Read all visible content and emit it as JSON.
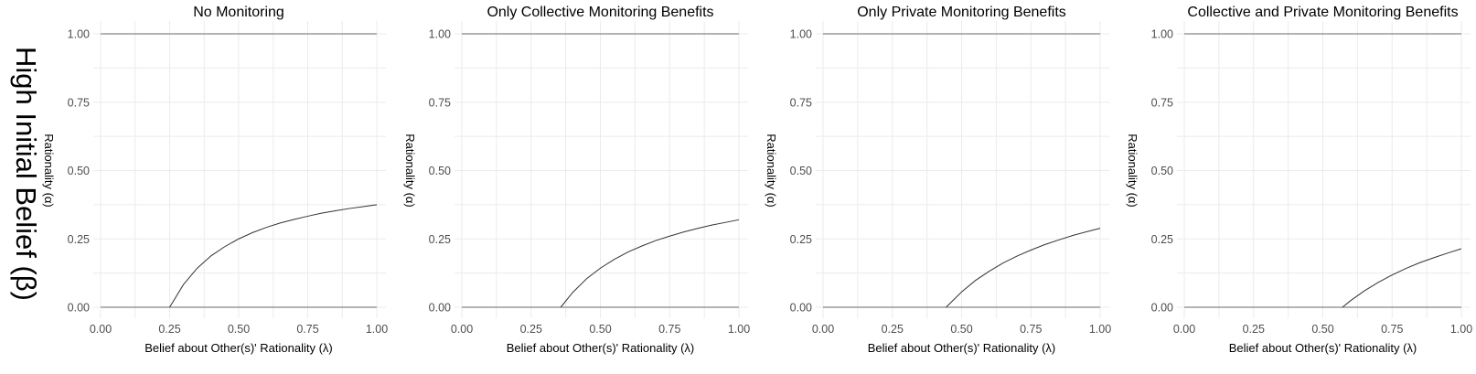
{
  "row_label": "High Initial Belief (β)",
  "chart_data": [
    {
      "type": "line",
      "title": "No Monitoring",
      "xlabel": "Belief about Other(s)' Rationality (λ)",
      "ylabel": "Rationality (α)",
      "xlim": [
        0,
        1
      ],
      "ylim": [
        0,
        1
      ],
      "xticks": [
        "0.00",
        "0.25",
        "0.50",
        "0.75",
        "1.00"
      ],
      "yticks": [
        "0.00",
        "0.25",
        "0.50",
        "0.75",
        "1.00"
      ],
      "grid": true,
      "series": [
        {
          "x": [
            0,
            1
          ],
          "y": [
            1,
            1
          ]
        },
        {
          "x": [
            0,
            1
          ],
          "y": [
            0,
            0
          ]
        },
        {
          "x": [
            0.25,
            0.3,
            0.35,
            0.4,
            0.45,
            0.5,
            0.55,
            0.6,
            0.65,
            0.7,
            0.75,
            0.8,
            0.85,
            0.9,
            0.95,
            1.0
          ],
          "y": [
            0,
            0.083,
            0.143,
            0.188,
            0.222,
            0.25,
            0.273,
            0.292,
            0.308,
            0.321,
            0.333,
            0.344,
            0.353,
            0.361,
            0.368,
            0.375
          ]
        }
      ]
    },
    {
      "type": "line",
      "title": "Only Collective Monitoring Benefits",
      "xlabel": "Belief about Other(s)' Rationality (λ)",
      "ylabel": "Rationality (α)",
      "xlim": [
        0,
        1
      ],
      "ylim": [
        0,
        1
      ],
      "xticks": [
        "0.00",
        "0.25",
        "0.50",
        "0.75",
        "1.00"
      ],
      "yticks": [
        "0.00",
        "0.25",
        "0.50",
        "0.75",
        "1.00"
      ],
      "grid": true,
      "series": [
        {
          "x": [
            0,
            1
          ],
          "y": [
            1,
            1
          ]
        },
        {
          "x": [
            0,
            1
          ],
          "y": [
            0,
            0
          ]
        },
        {
          "x": [
            0.357,
            0.4,
            0.45,
            0.5,
            0.55,
            0.6,
            0.65,
            0.7,
            0.75,
            0.8,
            0.85,
            0.9,
            0.95,
            1.0
          ],
          "y": [
            0,
            0.054,
            0.104,
            0.143,
            0.175,
            0.202,
            0.224,
            0.244,
            0.26,
            0.275,
            0.288,
            0.3,
            0.31,
            0.32
          ]
        }
      ]
    },
    {
      "type": "line",
      "title": "Only Private Monitoring Benefits",
      "xlabel": "Belief about Other(s)' Rationality (λ)",
      "ylabel": "Rationality (α)",
      "xlim": [
        0,
        1
      ],
      "ylim": [
        0,
        1
      ],
      "xticks": [
        "0.00",
        "0.25",
        "0.50",
        "0.75",
        "1.00"
      ],
      "yticks": [
        "0.00",
        "0.25",
        "0.50",
        "0.75",
        "1.00"
      ],
      "grid": true,
      "series": [
        {
          "x": [
            0,
            1
          ],
          "y": [
            1,
            1
          ]
        },
        {
          "x": [
            0,
            1
          ],
          "y": [
            0,
            0
          ]
        },
        {
          "x": [
            0.444,
            0.5,
            0.55,
            0.6,
            0.65,
            0.7,
            0.75,
            0.8,
            0.85,
            0.9,
            0.95,
            1.0
          ],
          "y": [
            0,
            0.056,
            0.098,
            0.132,
            0.162,
            0.187,
            0.209,
            0.229,
            0.246,
            0.262,
            0.276,
            0.289
          ]
        }
      ]
    },
    {
      "type": "line",
      "title": "Collective and Private Monitoring Benefits",
      "xlabel": "Belief about Other(s)' Rationality (λ)",
      "ylabel": "Rationality (α)",
      "xlim": [
        0,
        1
      ],
      "ylim": [
        0,
        1
      ],
      "xticks": [
        "0.00",
        "0.25",
        "0.50",
        "0.75",
        "1.00"
      ],
      "yticks": [
        "0.00",
        "0.25",
        "0.50",
        "0.75",
        "1.00"
      ],
      "grid": true,
      "series": [
        {
          "x": [
            0,
            1
          ],
          "y": [
            1,
            1
          ]
        },
        {
          "x": [
            0,
            1
          ],
          "y": [
            0,
            0
          ]
        },
        {
          "x": [
            0.571,
            0.6,
            0.65,
            0.7,
            0.75,
            0.8,
            0.85,
            0.9,
            0.95,
            1.0
          ],
          "y": [
            0,
            0.024,
            0.06,
            0.091,
            0.118,
            0.142,
            0.163,
            0.181,
            0.198,
            0.214
          ]
        }
      ]
    }
  ]
}
